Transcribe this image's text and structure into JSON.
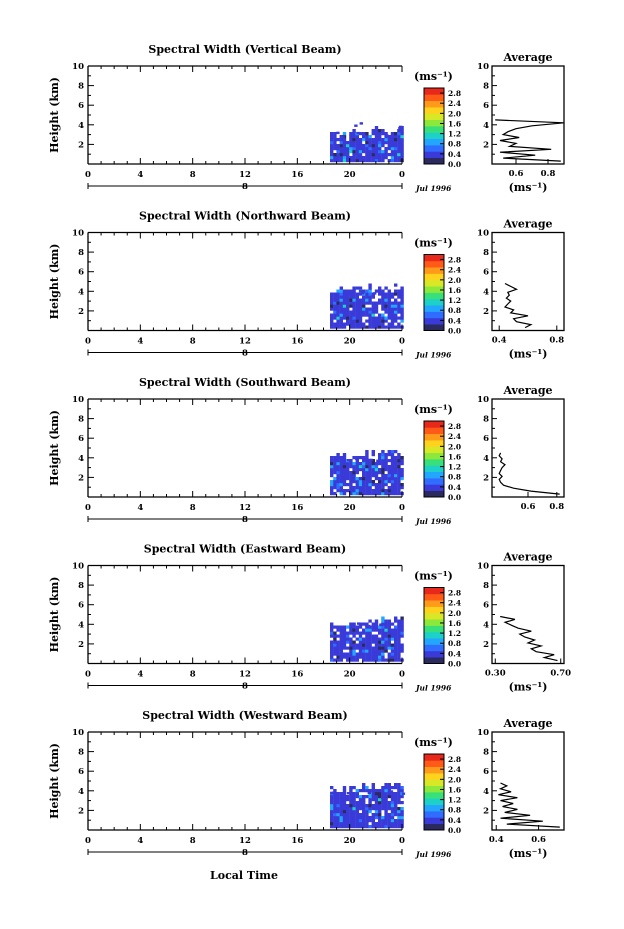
{
  "footer": {
    "xlabel": "Local Time"
  },
  "chart_data": [
    {
      "type": "heatmap",
      "title": "Spectral Width (Vertical Beam)",
      "ylabel": "Height (km)",
      "x_ticks": [
        "0",
        "4",
        "8",
        "12",
        "16",
        "20",
        "0"
      ],
      "date_tick": "8",
      "date_label": "Jul 1996",
      "ylim": [
        0,
        10
      ],
      "y_ticks": [
        "2",
        "4",
        "6",
        "8",
        "10"
      ],
      "xlim": [
        0,
        24
      ],
      "data_region": {
        "x_range": [
          18.5,
          24
        ],
        "height_range": [
          0.2,
          2.8
        ],
        "peak_height": 4.2,
        "dominant_value": 0.3
      },
      "colorbar": {
        "unit": "(ms⁻¹)",
        "ticks": [
          "0.0",
          "0.4",
          "0.8",
          "1.2",
          "1.6",
          "2.0",
          "2.4",
          "2.8"
        ],
        "range": [
          0,
          3.0
        ]
      },
      "average": {
        "title": "Average",
        "xlabel": "(ms⁻¹)",
        "x_ticks": [
          "0.6",
          "0.8"
        ],
        "x_tick_values": [
          0.6,
          0.8
        ],
        "xlim": [
          0.45,
          0.9
        ],
        "ylim": [
          0,
          10
        ],
        "y_ticks": [
          "2",
          "4",
          "6",
          "8",
          "10"
        ],
        "profile": {
          "height": [
            0.3,
            0.6,
            0.9,
            1.2,
            1.5,
            1.8,
            2.1,
            2.4,
            2.7,
            3.0,
            3.3,
            3.6,
            3.9,
            4.2,
            4.5
          ],
          "value": [
            0.88,
            0.52,
            0.72,
            0.5,
            0.82,
            0.56,
            0.6,
            0.5,
            0.62,
            0.52,
            0.55,
            0.6,
            0.7,
            0.9,
            0.47
          ]
        }
      }
    },
    {
      "type": "heatmap",
      "title": "Spectral Width (Northward Beam)",
      "ylabel": "Height (km)",
      "x_ticks": [
        "0",
        "4",
        "8",
        "12",
        "16",
        "20",
        "0"
      ],
      "date_tick": "8",
      "date_label": "Jul 1996",
      "ylim": [
        0,
        10
      ],
      "y_ticks": [
        "2",
        "4",
        "6",
        "8",
        "10"
      ],
      "xlim": [
        0,
        24
      ],
      "data_region": {
        "x_range": [
          18.5,
          24
        ],
        "height_range": [
          0.2,
          3.8
        ],
        "peak_height": 4.0,
        "dominant_value": 0.3
      },
      "colorbar": {
        "unit": "(ms⁻¹)",
        "ticks": [
          "0.0",
          "0.4",
          "0.8",
          "1.2",
          "1.6",
          "2.0",
          "2.4",
          "2.8"
        ],
        "range": [
          0,
          3.0
        ]
      },
      "average": {
        "title": "Average",
        "xlabel": "(ms⁻¹)",
        "x_ticks": [
          "0.4",
          "0.8"
        ],
        "x_tick_values": [
          0.4,
          0.8
        ],
        "xlim": [
          0.35,
          0.85
        ],
        "ylim": [
          0,
          10
        ],
        "y_ticks": [
          "2",
          "4",
          "6",
          "8",
          "10"
        ],
        "profile": {
          "height": [
            0.3,
            0.6,
            0.9,
            1.2,
            1.5,
            1.8,
            2.1,
            2.4,
            2.7,
            3.0,
            3.3,
            3.6,
            3.9,
            4.2,
            4.5,
            4.8
          ],
          "value": [
            0.58,
            0.62,
            0.52,
            0.5,
            0.6,
            0.48,
            0.5,
            0.44,
            0.46,
            0.48,
            0.45,
            0.47,
            0.46,
            0.52,
            0.48,
            0.44
          ]
        }
      }
    },
    {
      "type": "heatmap",
      "title": "Spectral Width (Southward Beam)",
      "ylabel": "Height (km)",
      "x_ticks": [
        "0",
        "4",
        "8",
        "12",
        "16",
        "20",
        "0"
      ],
      "date_tick": "8",
      "date_label": "Jul 1996",
      "ylim": [
        0,
        10
      ],
      "y_ticks": [
        "2",
        "4",
        "6",
        "8",
        "10"
      ],
      "xlim": [
        0,
        24
      ],
      "data_region": {
        "x_range": [
          18.5,
          24
        ],
        "height_range": [
          0.2,
          3.8
        ],
        "peak_height": 4.0,
        "dominant_value": 0.3
      },
      "colorbar": {
        "unit": "(ms⁻¹)",
        "ticks": [
          "0.0",
          "0.4",
          "0.8",
          "1.2",
          "1.6",
          "2.0",
          "2.4",
          "2.8"
        ],
        "range": [
          0,
          3.0
        ]
      },
      "average": {
        "title": "Average",
        "xlabel": "",
        "x_ticks": [
          "0.6",
          "0.8"
        ],
        "x_tick_values": [
          0.6,
          0.8
        ],
        "xlim": [
          0.35,
          0.85
        ],
        "ylim": [
          0,
          10
        ],
        "y_ticks": [
          "2",
          "4",
          "6",
          "8",
          "10"
        ],
        "profile": {
          "height": [
            0.3,
            0.6,
            0.9,
            1.2,
            1.5,
            1.8,
            2.1,
            2.4,
            2.7,
            3.0,
            3.3,
            3.6,
            3.9,
            4.2,
            4.5
          ],
          "value": [
            0.82,
            0.62,
            0.5,
            0.43,
            0.41,
            0.4,
            0.42,
            0.4,
            0.41,
            0.42,
            0.44,
            0.41,
            0.42,
            0.4,
            0.41
          ]
        }
      }
    },
    {
      "type": "heatmap",
      "title": "Spectral Width (Eastward Beam)",
      "ylabel": "Height (km)",
      "x_ticks": [
        "0",
        "4",
        "8",
        "12",
        "16",
        "20",
        "0"
      ],
      "date_tick": "8",
      "date_label": "Jul 1996",
      "ylim": [
        0,
        10
      ],
      "y_ticks": [
        "2",
        "4",
        "6",
        "8",
        "10"
      ],
      "xlim": [
        0,
        24
      ],
      "data_region": {
        "x_range": [
          18.5,
          24
        ],
        "height_range": [
          0.2,
          3.8
        ],
        "peak_height": 4.0,
        "dominant_value": 0.3
      },
      "colorbar": {
        "unit": "(ms⁻¹)",
        "ticks": [
          "0.0",
          "0.4",
          "0.8",
          "1.2",
          "1.6",
          "2.0",
          "2.4",
          "2.8"
        ],
        "range": [
          0,
          3.0
        ]
      },
      "average": {
        "title": "Average",
        "xlabel": "(ms⁻¹)",
        "x_ticks": [
          "0.30",
          "0.70"
        ],
        "x_tick_values": [
          0.3,
          0.7
        ],
        "xlim": [
          0.28,
          0.72
        ],
        "ylim": [
          0,
          10
        ],
        "y_ticks": [
          "2",
          "4",
          "6",
          "8",
          "10"
        ],
        "profile": {
          "height": [
            0.3,
            0.6,
            0.9,
            1.2,
            1.5,
            1.8,
            2.1,
            2.4,
            2.7,
            3.0,
            3.3,
            3.6,
            3.9,
            4.2,
            4.5,
            4.8
          ],
          "value": [
            0.68,
            0.6,
            0.66,
            0.55,
            0.52,
            0.58,
            0.5,
            0.54,
            0.48,
            0.45,
            0.52,
            0.44,
            0.4,
            0.36,
            0.42,
            0.33
          ]
        }
      }
    },
    {
      "type": "heatmap",
      "title": "Spectral Width (Westward Beam)",
      "ylabel": "Height (km)",
      "x_ticks": [
        "0",
        "4",
        "8",
        "12",
        "16",
        "20",
        "0"
      ],
      "date_tick": "8",
      "date_label": "Jul 1996",
      "ylim": [
        0,
        10
      ],
      "y_ticks": [
        "2",
        "4",
        "6",
        "8",
        "10"
      ],
      "xlim": [
        0,
        24
      ],
      "data_region": {
        "x_range": [
          18.5,
          24
        ],
        "height_range": [
          0.2,
          3.8
        ],
        "peak_height": 4.0,
        "dominant_value": 0.3
      },
      "colorbar": {
        "unit": "(ms⁻¹)",
        "ticks": [
          "0.0",
          "0.4",
          "0.8",
          "1.2",
          "1.6",
          "2.0",
          "2.4",
          "2.8"
        ],
        "range": [
          0,
          3.0
        ]
      },
      "average": {
        "title": "Average",
        "xlabel": "(ms⁻¹)",
        "x_ticks": [
          "0.4",
          "0.6"
        ],
        "x_tick_values": [
          0.4,
          0.6
        ],
        "xlim": [
          0.38,
          0.72
        ],
        "ylim": [
          0,
          10
        ],
        "y_ticks": [
          "2",
          "4",
          "6",
          "8",
          "10"
        ],
        "profile": {
          "height": [
            0.3,
            0.6,
            0.9,
            1.2,
            1.5,
            1.8,
            2.1,
            2.4,
            2.7,
            3.0,
            3.3,
            3.6,
            3.9,
            4.2,
            4.5,
            4.8
          ],
          "value": [
            0.7,
            0.45,
            0.62,
            0.42,
            0.56,
            0.44,
            0.5,
            0.43,
            0.48,
            0.42,
            0.5,
            0.41,
            0.47,
            0.42,
            0.45,
            0.42
          ]
        }
      }
    }
  ]
}
